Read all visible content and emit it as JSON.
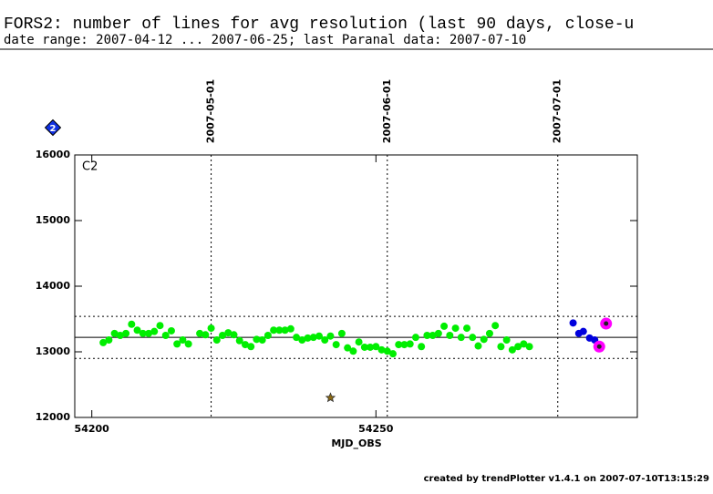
{
  "chart_data": {
    "type": "scatter",
    "title": "FORS2: number of lines for avg resolution (last 90 days, close-u",
    "subtitle": "date range: 2007-04-12 ... 2007-06-25; last Paranal data: 2007-07-10",
    "panel_label": "C2",
    "badge": "2",
    "xlabel": "MJD_OBS",
    "footer": "created by trendPlotter v1.4.1 on 2007-07-10T13:15:29",
    "xlim": [
      54197,
      54296
    ],
    "xticks": [
      54200,
      54250
    ],
    "ylim": [
      12000,
      16000
    ],
    "yticks": [
      12000,
      13000,
      14000,
      15000,
      16000
    ],
    "date_lines": [
      {
        "x": 54221,
        "label": "2007-05-01"
      },
      {
        "x": 54252,
        "label": "2007-06-01"
      },
      {
        "x": 54282,
        "label": "2007-07-01"
      }
    ],
    "hlines": [
      {
        "value": 13220,
        "style": "solid"
      },
      {
        "value": 13540,
        "style": "dotted"
      },
      {
        "value": 12900,
        "style": "dotted"
      }
    ],
    "series": [
      {
        "color": "#00ee00",
        "marker": "dot",
        "x": [
          54202,
          54203,
          54204,
          54205,
          54206,
          54207,
          54208,
          54209,
          54210,
          54211,
          54212,
          54213,
          54214,
          54215,
          54216,
          54217,
          54219,
          54220,
          54221,
          54222,
          54223,
          54224,
          54225,
          54226,
          54227,
          54228,
          54229,
          54230,
          54231,
          54232,
          54233,
          54234,
          54235,
          54236,
          54237,
          54238,
          54239,
          54240,
          54241,
          54242,
          54243,
          54244,
          54245,
          54246,
          54247,
          54248,
          54249,
          54250,
          54251,
          54252,
          54253,
          54254,
          54255,
          54256,
          54257,
          54258,
          54259,
          54260,
          54261,
          54262,
          54263,
          54264,
          54265,
          54266,
          54267,
          54268,
          54269,
          54270,
          54271,
          54272,
          54273,
          54274,
          54275,
          54276,
          54277
        ],
        "values": [
          13140,
          13180,
          13280,
          13250,
          13280,
          13420,
          13330,
          13280,
          13280,
          13310,
          13400,
          13250,
          13320,
          13120,
          13180,
          13120,
          13280,
          13260,
          13360,
          13180,
          13250,
          13290,
          13260,
          13170,
          13110,
          13080,
          13190,
          13180,
          13250,
          13330,
          13330,
          13330,
          13350,
          13220,
          13180,
          13210,
          13220,
          13240,
          13180,
          13240,
          13110,
          13280,
          13060,
          13010,
          13150,
          13070,
          13070,
          13080,
          13030,
          13010,
          12970,
          13110,
          13110,
          13120,
          13220,
          13080,
          13250,
          13250,
          13280,
          13390,
          13250,
          13360,
          13220,
          13360,
          13220,
          13090,
          13190,
          13280,
          13400,
          13080,
          13180,
          13030,
          13080,
          13120,
          13080
        ]
      },
      {
        "color": "#8b6914",
        "marker": "star",
        "x": [
          54242
        ],
        "values": [
          12300
        ]
      },
      {
        "color": "#0000dd",
        "marker": "dot",
        "x": [
          54284.7,
          54285.7,
          54286.5,
          54287.6,
          54288.5
        ],
        "values": [
          13440,
          13280,
          13310,
          13210,
          13180
        ]
      },
      {
        "color": "#ff00ff",
        "marker": "ring",
        "x": [
          54289.3,
          54290.5
        ],
        "values": [
          13080,
          13430
        ]
      }
    ]
  }
}
